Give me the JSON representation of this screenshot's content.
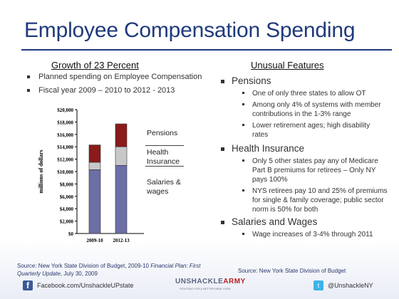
{
  "title": "Employee Compensation Spending",
  "left": {
    "heading": "Growth of 23 Percent",
    "bullets": [
      "Planned spending on Employee Compensation",
      "Fiscal year 2009 – 2010 to 2012 - 2013"
    ]
  },
  "chart_data": {
    "type": "bar",
    "stacked": true,
    "categories": [
      "2009-10",
      "2012-13"
    ],
    "ylabel": "millions of dollars",
    "ylim": [
      0,
      20000
    ],
    "yticks": [
      "$0",
      "$2,000",
      "$4,000",
      "$6,000",
      "$8,000",
      "$10,000",
      "$12,000",
      "$14,000",
      "$16,000",
      "$18,000",
      "$20,000"
    ],
    "series": [
      {
        "name": "Salaries & wages",
        "color": "#6b6fa6",
        "values": [
          10300,
          11000
        ]
      },
      {
        "name": "Health Insurance",
        "color": "#c8c8c8",
        "values": [
          1200,
          3000
        ]
      },
      {
        "name": "Pensions",
        "color": "#8b1a1a",
        "values": [
          2800,
          3700
        ]
      }
    ],
    "grid": false
  },
  "legend": {
    "pensions": "Pensions",
    "health": "Health\nInsurance",
    "salaries": "Salaries &\nwages"
  },
  "right": {
    "heading": "Unusual Features",
    "sections": [
      {
        "label": "Pensions",
        "items": [
          "One of only three states to allow OT",
          "Among only 4% of systems with member contributions in the 1-3% range",
          "Lower retirement ages; high disability rates"
        ]
      },
      {
        "label": "Health Insurance",
        "items": [
          "Only 5 other states pay any of Medicare Part B premiums for retirees – Only NY pays 100%",
          "NYS retirees pay 10 and 25% of premiums for single & family coverage; public sector norm is 50% for both"
        ]
      },
      {
        "label": "Salaries and Wages",
        "items": [
          "Wage increases of 3-4% through 2011"
        ]
      }
    ]
  },
  "source_left": {
    "prefix": "Source: New York State Division of Budget, 2009-10 ",
    "italic": "Financial Plan: First Quarterly Update",
    "suffix": ", July 30, 2009"
  },
  "source_right": "Source: New York State Division of Budget",
  "footer": {
    "facebook": "Facebook.com/UnshackleUPstate",
    "twitter": "@UnshackleNY",
    "logo_a": "UNSHACKLE",
    "logo_b": "ARMY",
    "logo_sub": "FIGHTING FOR A BETTER NEW YORK",
    "facebook_icon": "facebook-icon",
    "twitter_icon": "twitter-icon"
  }
}
